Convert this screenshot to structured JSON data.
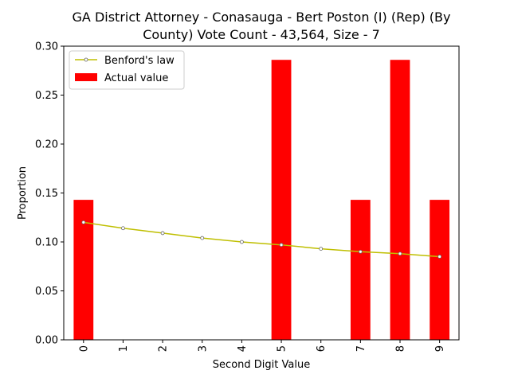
{
  "chart_data": {
    "type": "bar",
    "title_lines": [
      "GA District Attorney - Conasauga - Bert Poston (I) (Rep) (By",
      "County) Vote Count - 43,564, Size - 7"
    ],
    "xlabel": "Second Digit Value",
    "ylabel": "Proportion",
    "categories": [
      "0",
      "1",
      "2",
      "3",
      "4",
      "5",
      "6",
      "7",
      "8",
      "9"
    ],
    "ylim": [
      0,
      0.3
    ],
    "yticks": [
      "0.00",
      "0.05",
      "0.10",
      "0.15",
      "0.20",
      "0.25",
      "0.30"
    ],
    "legend_position": "upper-left",
    "series": [
      {
        "name": "Actual value",
        "kind": "bar",
        "color": "#ff0000",
        "values": [
          0.143,
          0,
          0,
          0,
          0,
          0.286,
          0,
          0.143,
          0.286,
          0.143
        ]
      },
      {
        "name": "Benford's law",
        "kind": "line",
        "color": "#bfbf00",
        "values": [
          0.12,
          0.114,
          0.109,
          0.104,
          0.1,
          0.097,
          0.093,
          0.09,
          0.088,
          0.085
        ]
      }
    ]
  }
}
